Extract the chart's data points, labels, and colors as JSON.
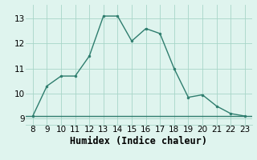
{
  "x": [
    8,
    9,
    10,
    11,
    12,
    13,
    14,
    15,
    16,
    17,
    18,
    19,
    20,
    21,
    22,
    23
  ],
  "y": [
    9.1,
    10.3,
    10.7,
    10.7,
    11.5,
    13.1,
    13.1,
    12.1,
    12.6,
    12.4,
    11.0,
    9.85,
    9.95,
    9.5,
    9.2,
    9.1
  ],
  "line_color": "#2e7d6e",
  "marker_color": "#2e7d6e",
  "bg_color": "#dff4ee",
  "grid_color": "#a8d5c8",
  "hline_color": "#2e7d6e",
  "hline_y": 9.1,
  "xlabel": "Humidex (Indice chaleur)",
  "xlim": [
    7.5,
    23.5
  ],
  "ylim": [
    8.75,
    13.55
  ],
  "xticks": [
    8,
    9,
    10,
    11,
    12,
    13,
    14,
    15,
    16,
    17,
    18,
    19,
    20,
    21,
    22,
    23
  ],
  "yticks": [
    9,
    10,
    11,
    12,
    13
  ],
  "font_size": 7.5,
  "label_font_size": 8.5,
  "linewidth": 1.0,
  "markersize": 2.0
}
